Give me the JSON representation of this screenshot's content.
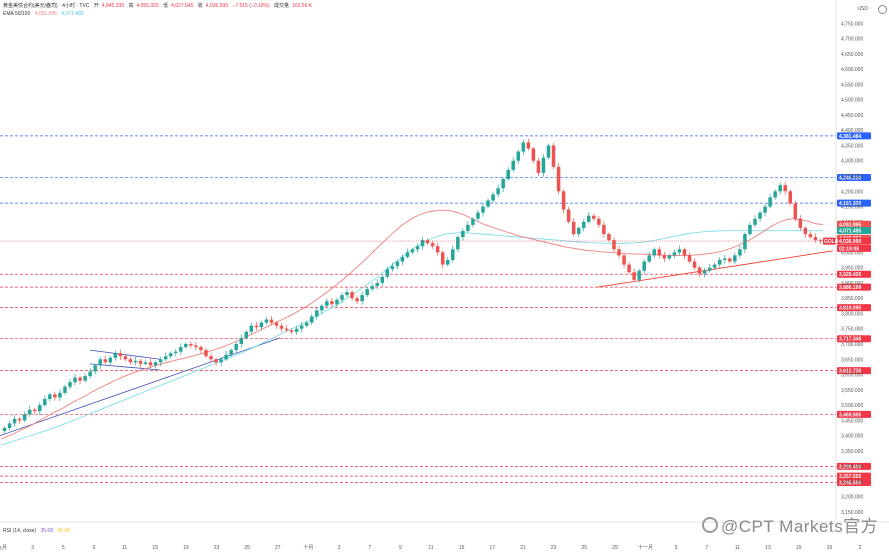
{
  "header": {
    "symbol_line": "黄金美债合约(美元/盎司) · 4小时 · TVC",
    "open_label": "开",
    "open": "4,045.330",
    "high_label": "高",
    "high": "4,055.320",
    "low_label": "低",
    "low": "4,027.045",
    "close_label": "收",
    "close": "4,036.990",
    "change": "−7.515 (−0.19%)",
    "volume_label": "成交量",
    "volume": "163.56 K",
    "indicator_line": "EMA 50/100",
    "ema_fast": "4,091.995",
    "ema_slow": "4,071.485",
    "currency": "USD"
  },
  "colors": {
    "bull": "#26a69a",
    "bear": "#ef5350",
    "ema_fast": "#f08080",
    "ema_slow": "#80deea",
    "support_line": "#f44336",
    "trend_line": "#3f51b5",
    "level_blue": "#2962ff",
    "level_red": "#f23645"
  },
  "y_axis": {
    "min": 3150,
    "max": 4800,
    "ticks": [
      "4,750.000",
      "4,700.000",
      "4,650.000",
      "4,600.000",
      "4,550.000",
      "4,500.000",
      "4,450.000",
      "4,400.000",
      "4,350.000",
      "4,300.000",
      "4,250.000",
      "4,200.000",
      "4,150.000",
      "4,100.000",
      "4,050.000",
      "4,000.000",
      "3,950.000",
      "3,900.000",
      "3,850.000",
      "3,800.000",
      "3,750.000",
      "3,700.000",
      "3,650.000",
      "3,600.000",
      "3,550.000",
      "3,500.000",
      "3,450.000",
      "3,400.000",
      "3,350.000",
      "3,300.000",
      "3,250.000",
      "3,200.000",
      "3,150.000"
    ]
  },
  "levels": [
    {
      "value": 4381.484,
      "label": "4,381.484",
      "color": "blue"
    },
    {
      "value": 4245.22,
      "label": "4,245.220",
      "color": "blue"
    },
    {
      "value": 4161.32,
      "label": "4,161.320",
      "color": "blue"
    },
    {
      "value": 3928.42,
      "label": "3,928.420",
      "color": "red"
    },
    {
      "value": 3886.199,
      "label": "3,886.199",
      "color": "red"
    },
    {
      "value": 3819.095,
      "label": "3,819.095",
      "color": "red"
    },
    {
      "value": 3717.348,
      "label": "3,717.348",
      "color": "red"
    },
    {
      "value": 3612.73,
      "label": "3,612.730",
      "color": "red"
    },
    {
      "value": 3469.805,
      "label": "3,469.805",
      "color": "red"
    },
    {
      "value": 3299.4,
      "label": "3,299.400",
      "color": "red"
    },
    {
      "value": 3267.555,
      "label": "3,267.555",
      "color": "red"
    },
    {
      "value": 3246.55,
      "label": "3,246.550",
      "color": "red"
    }
  ],
  "price_tags": [
    {
      "value": 4091.995,
      "label": "4,091.995",
      "bg": "#ef5350"
    },
    {
      "value": 4071.485,
      "label": "4,071.485",
      "bg": "#26a69a"
    },
    {
      "value": 4046.252,
      "label": "4,046.252",
      "bg": "#ef5350"
    },
    {
      "value": 4036.99,
      "label": "4,036.990",
      "bg": "#f23645"
    },
    {
      "value": 4013.0,
      "label": "02:19:08",
      "bg": "#f23645"
    }
  ],
  "current_tag": "GOLD",
  "x_axis": {
    "labels": [
      "九月",
      "3",
      "5",
      "9",
      "11",
      "15",
      "19",
      "23",
      "25",
      "27",
      "十月",
      "3",
      "7",
      "9",
      "11",
      "15",
      "17",
      "21",
      "23",
      "25",
      "29",
      "十一月",
      "5",
      "7",
      "11",
      "13",
      "15",
      "19",
      "2"
    ]
  },
  "chart_data": {
    "type": "candlestick",
    "title": "黄金美债合约(美元/盎司) · 4小时 · TVC",
    "xlabel": "",
    "ylabel": "",
    "ylim": [
      3150,
      4800
    ],
    "series_close": [
      3425,
      3440,
      3455,
      3450,
      3470,
      3485,
      3480,
      3500,
      3520,
      3535,
      3525,
      3540,
      3560,
      3575,
      3590,
      3580,
      3595,
      3610,
      3630,
      3650,
      3640,
      3655,
      3670,
      3660,
      3650,
      3640,
      3645,
      3635,
      3640,
      3630,
      3640,
      3650,
      3660,
      3670,
      3675,
      3690,
      3700,
      3695,
      3690,
      3680,
      3660,
      3650,
      3640,
      3650,
      3665,
      3680,
      3700,
      3720,
      3740,
      3760,
      3755,
      3770,
      3780,
      3770,
      3760,
      3750,
      3745,
      3740,
      3750,
      3760,
      3770,
      3790,
      3810,
      3825,
      3840,
      3830,
      3845,
      3860,
      3870,
      3850,
      3840,
      3860,
      3880,
      3890,
      3900,
      3920,
      3945,
      3955,
      3970,
      3985,
      4000,
      4010,
      4020,
      4040,
      4030,
      4020,
      4000,
      3960,
      3975,
      4010,
      4050,
      4070,
      4090,
      4110,
      4130,
      4150,
      4170,
      4190,
      4210,
      4240,
      4270,
      4300,
      4330,
      4360,
      4340,
      4300,
      4260,
      4310,
      4350,
      4280,
      4200,
      4140,
      4100,
      4060,
      4080,
      4100,
      4120,
      4110,
      4090,
      4060,
      4040,
      4010,
      3990,
      3960,
      3935,
      3910,
      3940,
      3970,
      3990,
      4010,
      3990,
      3980,
      3990,
      4000,
      4010,
      3990,
      3970,
      3950,
      3930,
      3940,
      3950,
      3960,
      3975,
      3980,
      3970,
      3990,
      4010,
      4060,
      4090,
      4110,
      4130,
      4150,
      4180,
      4200,
      4220,
      4200,
      4160,
      4110,
      4080,
      4060,
      4050,
      4040,
      4037
    ],
    "ema50": [
      3390,
      3400,
      3412,
      3424,
      3436,
      3450,
      3464,
      3478,
      3490,
      3505,
      3518,
      3530,
      3545,
      3558,
      3570,
      3582,
      3593,
      3603,
      3612,
      3620,
      3628,
      3635,
      3642,
      3648,
      3654,
      3660,
      3667,
      3674,
      3682,
      3690,
      3700,
      3710,
      3722,
      3734,
      3746,
      3758,
      3770,
      3782,
      3794,
      3808,
      3822,
      3838,
      3856,
      3874,
      3894,
      3914,
      3936,
      3958,
      3982,
      4006,
      4030,
      4054,
      4076,
      4096,
      4112,
      4124,
      4132,
      4136,
      4138,
      4136,
      4130,
      4120,
      4108,
      4096,
      4086,
      4078,
      4070,
      4062,
      4054,
      4048,
      4042,
      4036,
      4030,
      4024,
      4018,
      4014,
      4010,
      4006,
      4004,
      4002,
      4000,
      3998,
      3996,
      3995,
      3994,
      3993,
      3992,
      3991,
      3990,
      3990,
      3990,
      3991,
      3993,
      3996,
      4000,
      4006,
      4014,
      4024,
      4036,
      4050,
      4066,
      4082,
      4096,
      4106,
      4110,
      4108,
      4102,
      4094,
      4091
    ],
    "ema100": [
      3370,
      3378,
      3386,
      3394,
      3402,
      3410,
      3418,
      3427,
      3436,
      3446,
      3456,
      3466,
      3476,
      3486,
      3496,
      3506,
      3516,
      3526,
      3536,
      3546,
      3556,
      3566,
      3576,
      3586,
      3596,
      3606,
      3616,
      3626,
      3636,
      3646,
      3656,
      3666,
      3676,
      3688,
      3700,
      3712,
      3724,
      3736,
      3748,
      3760,
      3772,
      3786,
      3800,
      3814,
      3828,
      3844,
      3860,
      3876,
      3894,
      3912,
      3932,
      3952,
      3972,
      3992,
      4010,
      4026,
      4040,
      4050,
      4058,
      4062,
      4064,
      4064,
      4062,
      4060,
      4058,
      4056,
      4054,
      4052,
      4050,
      4048,
      4046,
      4044,
      4042,
      4040,
      4038,
      4036,
      4034,
      4032,
      4031,
      4030,
      4029,
      4029,
      4030,
      4031,
      4033,
      4036,
      4040,
      4045,
      4050,
      4055,
      4060,
      4064,
      4067,
      4069,
      4070,
      4071,
      4071,
      4071,
      4071,
      4071,
      4071,
      4071,
      4071,
      4071,
      4071,
      4071,
      4071,
      4071,
      4071
    ]
  },
  "rsi": {
    "label": "RSI (14, close)",
    "value1": "35.68",
    "value2": "45.48"
  },
  "watermark": "@CPT Markets官方"
}
